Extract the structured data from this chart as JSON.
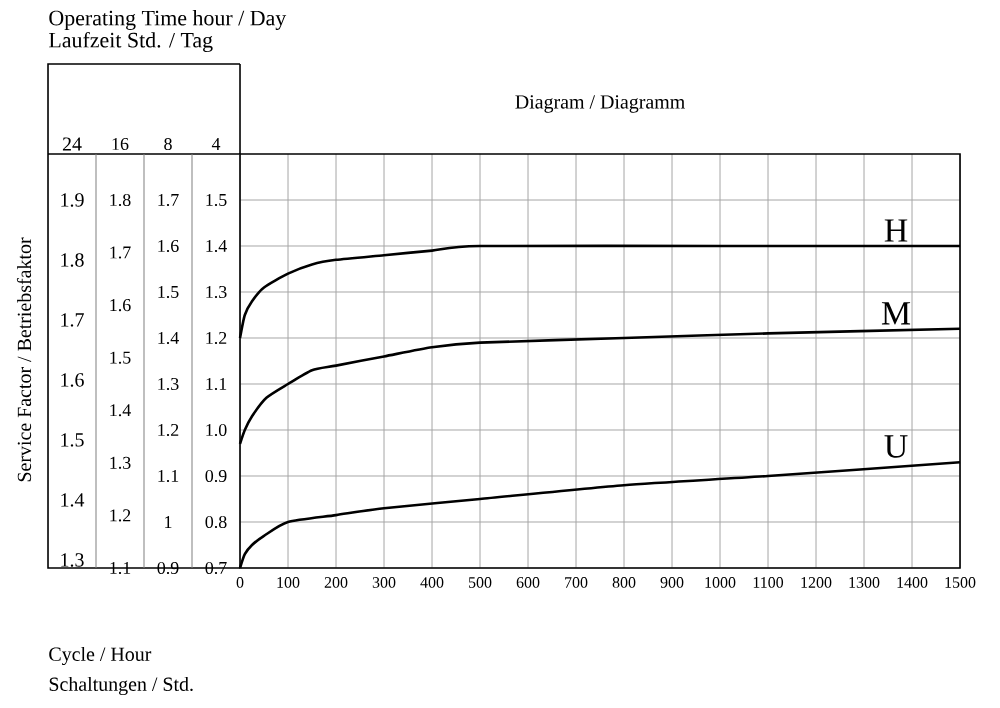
{
  "chart_data": {
    "type": "line",
    "title": "Operating Time hour / Day",
    "subtitle": "Laufzeit Std. / Tag",
    "xlabel": "Cycle / Hour",
    "ylabel": "4",
    "y2label": "8",
    "y3label": "16",
    "annotations": [
      "Diagram / Diagramm",
      "Service Factor / Betriebsfaktor",
      "Schaltungen / Std.",
      "24",
      "1.9",
      "1.8",
      "1.7",
      "1.6",
      "1.5",
      "1.4",
      "1.3"
    ],
    "xlim": [
      0,
      1500
    ],
    "xticks": [
      0,
      100,
      200,
      300,
      400,
      500,
      600,
      700,
      800,
      900,
      1000,
      1100,
      1200,
      1300,
      1400,
      1500
    ],
    "ylim": [
      0.7,
      1.6
    ],
    "yticks": [
      0.7,
      0.8,
      0.9,
      {
        "value": 1.0,
        "label": "1.0"
      },
      1.1,
      1.2,
      1.3,
      1.4,
      1.5
    ],
    "y2lim": [
      0.9,
      1.8
    ],
    "y2ticks": [
      0.9,
      1,
      1.1,
      1.2,
      1.3,
      1.4,
      1.5,
      1.6,
      1.7
    ],
    "y3lim": [
      1.1,
      1.8875
    ],
    "y3ticks": [
      1.1,
      1.2,
      1.3,
      1.4,
      1.5,
      1.6,
      1.7,
      1.8
    ],
    "grid": true,
    "legend": false,
    "marker": "none",
    "line_style": "solid",
    "series": [
      {
        "name": "H",
        "color": "#000000",
        "x": [
          0,
          10,
          25,
          50,
          100,
          150,
          200,
          300,
          400,
          500,
          1000,
          1500
        ],
        "values": [
          1.2,
          1.25,
          1.28,
          1.31,
          1.34,
          1.36,
          1.37,
          1.38,
          1.39,
          1.4,
          1.4,
          1.4
        ]
      },
      {
        "name": "M",
        "color": "#000000",
        "x": [
          0,
          10,
          25,
          55,
          100,
          150,
          200,
          300,
          400,
          500,
          800,
          1100,
          1500
        ],
        "values": [
          0.97,
          1.0,
          1.03,
          1.07,
          1.1,
          1.13,
          1.14,
          1.16,
          1.18,
          1.19,
          1.2,
          1.21,
          1.22
        ]
      },
      {
        "name": "U",
        "color": "#000000",
        "x": [
          0,
          10,
          25,
          50,
          100,
          200,
          300,
          500,
          800,
          1100,
          1500
        ],
        "values": [
          0.7,
          0.73,
          0.75,
          0.77,
          0.8,
          0.815,
          0.83,
          0.85,
          0.88,
          0.9,
          0.93
        ]
      }
    ]
  }
}
